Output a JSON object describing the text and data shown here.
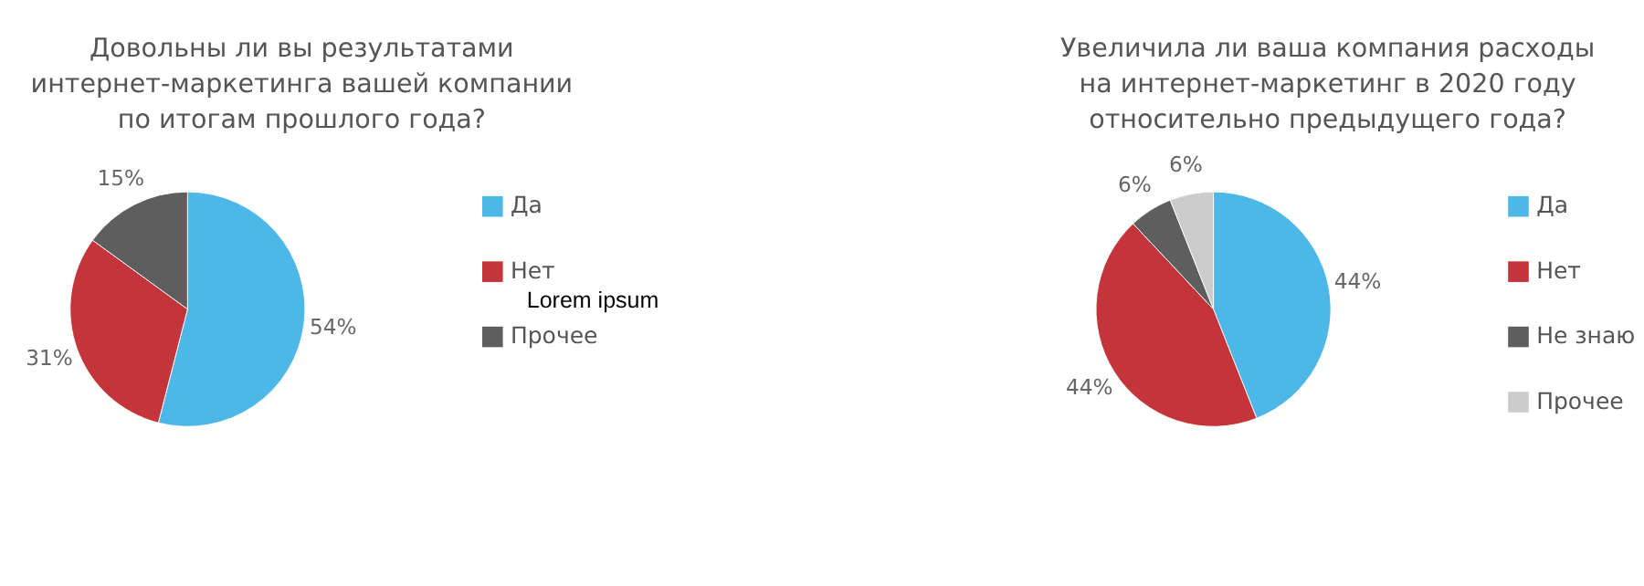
{
  "chart_data": [
    {
      "type": "pie",
      "title": "Довольны ли вы результатами\nинтернет-маркетинга вашей компании\nпо итогам прошлого года?",
      "categories": [
        "Да",
        "Нет",
        "Прочее"
      ],
      "values": [
        54,
        31,
        15
      ],
      "colors": [
        "#4db8e8",
        "#c4353b",
        "#5e5e5e"
      ],
      "value_labels": [
        "54%",
        "31%",
        "15%"
      ],
      "legend": "right",
      "annotations": [
        "Lorem ipsum"
      ]
    },
    {
      "type": "pie",
      "title": "Увеличила ли ваша компания расходы\nна интернет-маркетинг в 2020 году\nотносительно предыдущего года?",
      "categories": [
        "Да",
        "Нет",
        "Не знаю",
        "Прочее"
      ],
      "values": [
        44,
        44,
        6,
        6
      ],
      "colors": [
        "#4db8e8",
        "#c4353b",
        "#5e5e5e",
        "#cccccc"
      ],
      "value_labels": [
        "44%",
        "44%",
        "6%",
        "6%"
      ],
      "legend": "right"
    }
  ]
}
